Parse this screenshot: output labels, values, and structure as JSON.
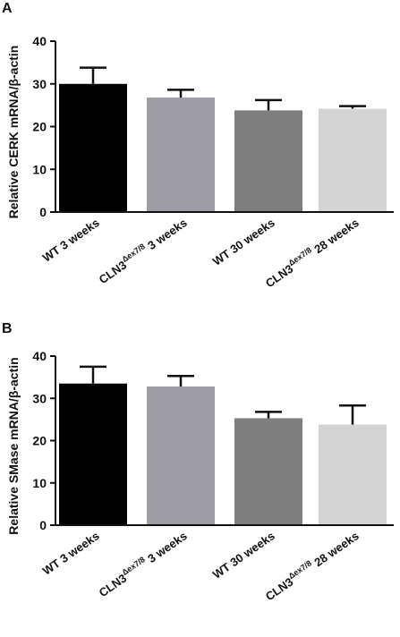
{
  "chart_data": [
    {
      "panel": "A",
      "type": "bar",
      "ylabel": "Relative CERK mRNA/β-actin",
      "ylim": [
        0,
        40
      ],
      "yticks": [
        0,
        10,
        20,
        30,
        40
      ],
      "categories": [
        {
          "pre": "WT 3 weeks",
          "sup": "",
          "post": ""
        },
        {
          "pre": "CLN3",
          "sup": "Δex7/8",
          "post": " 3 weeks"
        },
        {
          "pre": "WT 30 weeks",
          "sup": "",
          "post": ""
        },
        {
          "pre": "CLN3",
          "sup": "Δex7/8",
          "post": " 28 weeks"
        }
      ],
      "values": [
        30,
        26.8,
        23.8,
        24.2
      ],
      "errors": [
        3.8,
        1.8,
        2.4,
        0.6
      ],
      "colors": [
        "#000000",
        "#9d9da3",
        "#7e7e7e",
        "#d4d4d4"
      ]
    },
    {
      "panel": "B",
      "type": "bar",
      "ylabel": "Relative SMase mRNA/β-actin",
      "ylim": [
        0,
        40
      ],
      "yticks": [
        0,
        10,
        20,
        30,
        40
      ],
      "categories": [
        {
          "pre": "WT 3 weeks",
          "sup": "",
          "post": ""
        },
        {
          "pre": "CLN3",
          "sup": "Δex7/8",
          "post": " 3 weeks"
        },
        {
          "pre": "WT 30 weeks",
          "sup": "",
          "post": ""
        },
        {
          "pre": "CLN3",
          "sup": "Δex7/8",
          "post": " 28 weeks"
        }
      ],
      "values": [
        33.5,
        32.8,
        25.3,
        23.8
      ],
      "errors": [
        4,
        2.5,
        1.5,
        4.5
      ],
      "colors": [
        "#000000",
        "#9d9da3",
        "#7e7e7e",
        "#d4d4d4"
      ]
    }
  ]
}
